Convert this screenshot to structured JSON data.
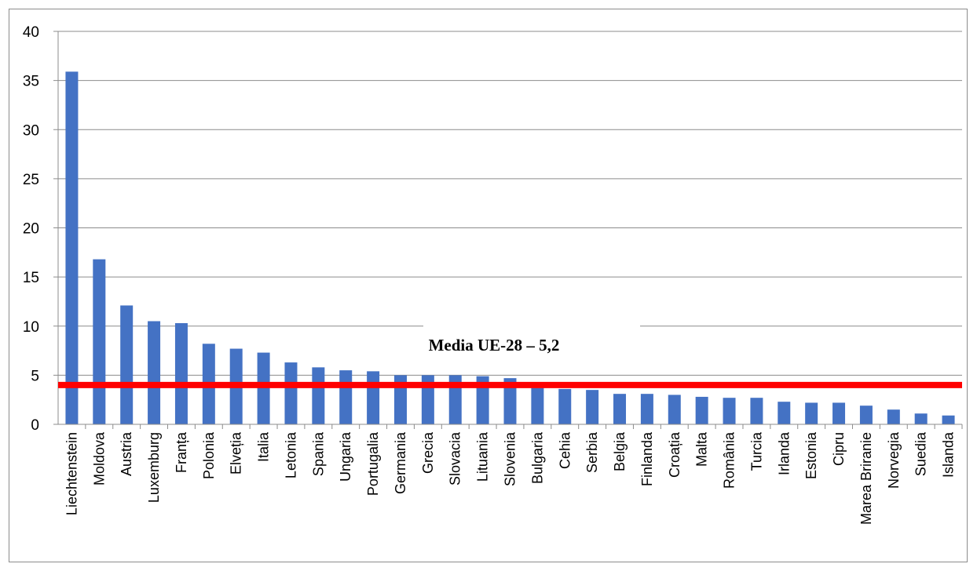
{
  "chart_data": {
    "type": "bar",
    "title": "",
    "xlabel": "",
    "ylabel": "",
    "ylim": [
      0,
      40
    ],
    "yticks": [
      0,
      5,
      10,
      15,
      20,
      25,
      30,
      35,
      40
    ],
    "grid": true,
    "legend": "none",
    "bar_color": "#4472C4",
    "categories": [
      "Liechtenstein",
      "Moldova",
      "Austria",
      "Luxemburg",
      "Franța",
      "Polonia",
      "Elveția",
      "Italia",
      "Letonia",
      "Spania",
      "Ungaria",
      "Portugalia",
      "Germania",
      "Grecia",
      "Slovacia",
      "Lituania",
      "Slovenia",
      "Bulgaria",
      "Cehia",
      "Serbia",
      "Belgia",
      "Finlanda",
      "Croația",
      "Malta",
      "România",
      "Turcia",
      "Irlanda",
      "Estonia",
      "Cipru",
      "Marea Briranie",
      "Norvegia",
      "Suedia",
      "Islanda"
    ],
    "values": [
      35.9,
      16.8,
      12.1,
      10.5,
      10.3,
      8.2,
      7.7,
      7.3,
      6.3,
      5.8,
      5.5,
      5.4,
      5.0,
      5.0,
      5.0,
      4.9,
      4.7,
      3.7,
      3.6,
      3.5,
      3.1,
      3.1,
      3.0,
      2.8,
      2.7,
      2.7,
      2.3,
      2.2,
      2.2,
      1.9,
      1.5,
      1.1,
      0.9
    ],
    "reference_line": {
      "value": 4.0,
      "color": "#FF0000"
    },
    "annotation": {
      "text": "Media UE-28 – 5,2"
    }
  }
}
